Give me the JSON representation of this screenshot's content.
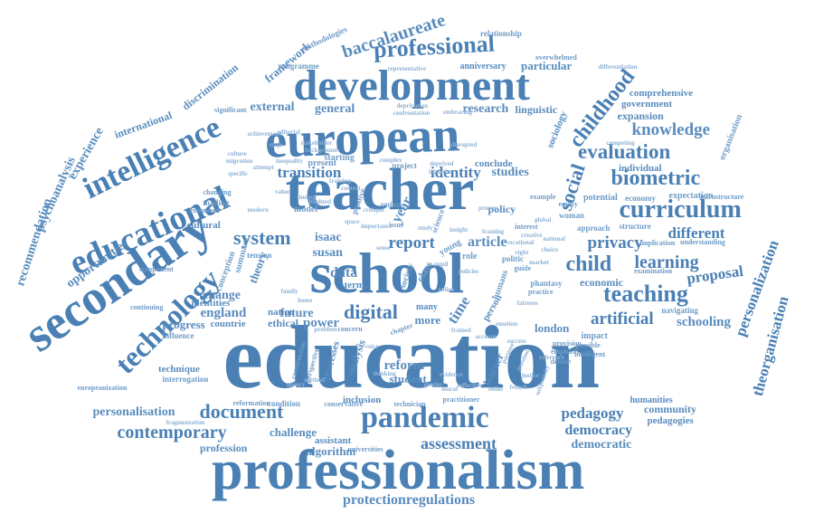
{
  "colors": {
    "primary": "#4a80b4",
    "secondary": "#5a8dbe",
    "tertiary": "#6f9cc8",
    "light": "#8fb2d6",
    "background": "#ffffff"
  },
  "words": [
    "education",
    "professionalism",
    "teacher",
    "school",
    "european",
    "development",
    "secondary",
    "educational",
    "technology",
    "intelligence",
    "pandemic",
    "professional",
    "baccalaureate",
    "curriculum",
    "biometric",
    "teaching",
    "evaluation",
    "social",
    "childhood",
    "system",
    "document",
    "contemporary",
    "digital",
    "report",
    "child",
    "learning",
    "privacy",
    "knowledge",
    "artificial",
    "assessment",
    "protectionregulations",
    "personalization",
    "theorganisation",
    "recommendation",
    "psychoanalysis",
    "experience",
    "opportunities",
    "framework",
    "methodologies",
    "relationship",
    "international",
    "discrimination",
    "external",
    "general",
    "research",
    "linguistic",
    "transition",
    "identity",
    "studies",
    "different",
    "proposal",
    "schooling",
    "pedagogy",
    "democracy",
    "democratic",
    "community",
    "pedagogies",
    "isaac",
    "susan",
    "article",
    "future",
    "power",
    "england",
    "change",
    "progress",
    "personalisation",
    "challenge",
    "reform",
    "student",
    "algorithm",
    "assistant",
    "profession",
    "data",
    "theory",
    "nation",
    "ethical",
    "london",
    "economic",
    "comprehensive",
    "government",
    "expansion",
    "particular",
    "overwhelmed",
    "anniversary",
    "programme",
    "sociology",
    "organisation",
    "individual",
    "potential",
    "economy",
    "expectation",
    "infrastructure",
    "approach",
    "structure",
    "woman",
    "equity",
    "implication",
    "understanding",
    "examination",
    "navigating",
    "impact",
    "possible",
    "provision",
    "emphasis",
    "debate",
    "humanities",
    "technique",
    "interrogation",
    "europeanization",
    "fragmentation",
    "conservative",
    "inclusion",
    "technician",
    "practitioner",
    "universities",
    "condition",
    "reformation",
    "countrie",
    "influence",
    "component",
    "continuing",
    "cultural",
    "conception",
    "identities",
    "summary",
    "mailing",
    "examined",
    "tension",
    "year",
    "time",
    "term",
    "many",
    "more",
    "analysis",
    "processes",
    "learner",
    "person",
    "humans",
    "politic",
    "role",
    "policy",
    "science",
    "union",
    "young",
    "class",
    "society",
    "guide",
    "perspective",
    "construction",
    "significant",
    "representative",
    "deprivation",
    "confrontation",
    "embracing",
    "disrupted",
    "competing",
    "differentiation",
    "stakeholder",
    "background",
    "inequality",
    "starting",
    "present",
    "conclude",
    "project",
    "limited",
    "deprived",
    "initiative",
    "issue",
    "study",
    "space",
    "context",
    "chapter",
    "concern",
    "problem",
    "model",
    "blighted",
    "positive",
    "critique",
    "importance",
    "insight",
    "sense",
    "policies",
    "creative",
    "training",
    "editorial",
    "achievement",
    "stage",
    "culture",
    "migration",
    "attempt",
    "value",
    "complex",
    "process",
    "framing",
    "pupil",
    "right",
    "phantasy",
    "practice",
    "interest",
    "vocational",
    "global",
    "national",
    "market",
    "choice",
    "reference",
    "intelligent",
    "fairness",
    "emotion",
    "online",
    "example",
    "framed",
    "changing",
    "specific",
    "modern",
    "family",
    "home",
    "voice",
    "thinking",
    "evidence",
    "reflective",
    "french",
    "justice",
    "success",
    "account",
    "question",
    "purpose",
    "method",
    "agency",
    "subjectivity",
    "gender",
    "moral",
    "belief"
  ]
}
